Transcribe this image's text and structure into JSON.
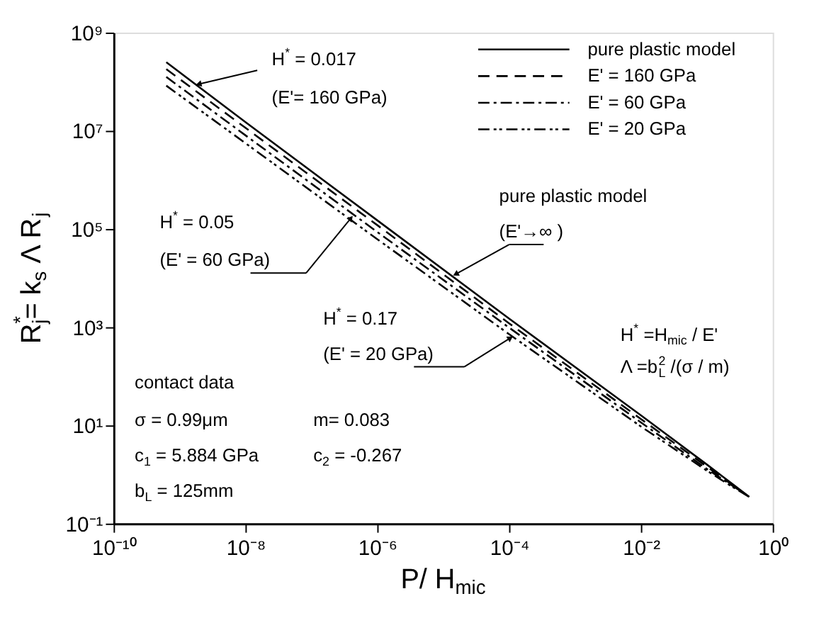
{
  "chart_data": {
    "type": "line",
    "xlabel": "P/  H$_{mic}$",
    "ylabel": "R$_{j}$$^{*}$= k$_{s}$ Λ R$_{j}$",
    "log": "xy",
    "xlim": [
      1e-10,
      1
    ],
    "ylim": [
      0.1,
      1000000000.0
    ],
    "xticks": [
      {
        "value": 1e-10,
        "label": "10⁻¹⁰"
      },
      {
        "value": 1e-08,
        "label": "10⁻⁸"
      },
      {
        "value": 1e-06,
        "label": "10⁻⁶"
      },
      {
        "value": 0.0001,
        "label": "10⁻⁴"
      },
      {
        "value": 0.01,
        "label": "10⁻²"
      },
      {
        "value": 1,
        "label": "10⁰"
      }
    ],
    "yticks": [
      {
        "value": 0.1,
        "label": "10⁻¹"
      },
      {
        "value": 10,
        "label": "10¹"
      },
      {
        "value": 1000,
        "label": "10³"
      },
      {
        "value": 100000,
        "label": "10⁵"
      },
      {
        "value": 10000000,
        "label": "10⁷"
      },
      {
        "value": 1000000000,
        "label": "10⁹"
      }
    ],
    "grid": false,
    "legend": "top right",
    "x": [
      6.3e-10,
      1e-08,
      1e-06,
      0.0001,
      0.01,
      0.1,
      0.25,
      0.44
    ],
    "series": [
      {
        "name": "pure plastic model",
        "color": "#000000",
        "line_style": "solid",
        "values": [
          250000000.0,
          15000000.0,
          150000.0,
          1500,
          16,
          1.6,
          0.63,
          0.35
        ]
      },
      {
        "name": "E' = 160 GPa",
        "color": "#000000",
        "line_style": "dashed",
        "values": [
          180000000.0,
          11500000.0,
          120000.0,
          1200,
          13.5,
          1.45,
          0.6,
          0.35
        ]
      },
      {
        "name": "E' = 60 GPa",
        "color": "#000000",
        "line_style": "dashdot",
        "values": [
          125000000.0,
          8100000.0,
          87000.0,
          980,
          11.5,
          1.3,
          0.58,
          0.35
        ]
      },
      {
        "name": "E' = 20 GPa",
        "color": "#000000",
        "line_style": "dashdotdot",
        "values": [
          83000000.0,
          5600000.0,
          62000.0,
          720,
          9.5,
          1.2,
          0.55,
          0.35
        ]
      }
    ],
    "annotations": [
      {
        "text": "H$^{*}$ = 0.017",
        "x": 1.95e-09,
        "y": 89000000.0
      },
      "(E'= 160 GPa)",
      "H$^{*}$ = 0.05",
      "(E' = 60 GPa)",
      "pure plastic model",
      {
        "text": "(E'→∞ )",
        "x": 1.55e-05,
        "y": 12000
      },
      "H$^{*}$ = 0.17",
      "(E' = 20 GPa)",
      "H$^{*}$ =H$_{mic}$ / E'",
      "Λ =b$_{L}$$^{2}$ /(σ / m)",
      "contact data",
      "σ = 0.99μm",
      "m= 0.083",
      "c$_{1}$ = 5.884 GPa",
      "c$_{2}$ = -0.267",
      "b$_{L}$ = 125mm"
    ]
  }
}
